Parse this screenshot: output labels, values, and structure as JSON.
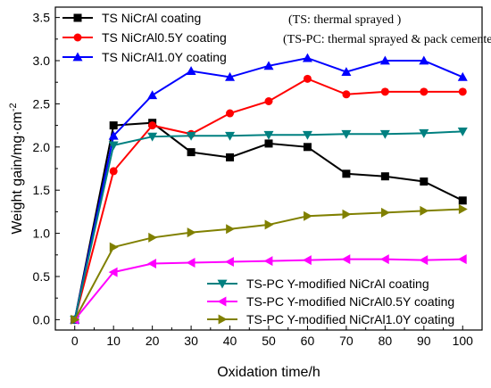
{
  "chart_data": {
    "type": "line",
    "xlabel": "Oxidation time/h",
    "ylabel_main": "Weight gain/mg·cm",
    "ylabel_sup": "-2",
    "xlim": [
      -5,
      105
    ],
    "ylim": [
      -0.12,
      3.62
    ],
    "x_ticks": [
      0,
      10,
      20,
      30,
      40,
      50,
      60,
      70,
      80,
      90,
      100
    ],
    "y_ticks": [
      0.0,
      0.5,
      1.0,
      1.5,
      2.0,
      2.5,
      3.0,
      3.5
    ],
    "x_tick_labels": [
      "0",
      "10",
      "20",
      "30",
      "40",
      "50",
      "60",
      "70",
      "80",
      "90",
      "100"
    ],
    "y_tick_labels": [
      "0.0",
      "0.5",
      "1.0",
      "1.5",
      "2.0",
      "2.5",
      "3.0",
      "3.5"
    ],
    "grid": false,
    "legend_top": "top-left",
    "legend_bottom": "bottom-right",
    "annotations": [
      "(TS: thermal sprayed )",
      "(TS-PC: thermal sprayed & pack cemented)"
    ],
    "x": [
      0,
      10,
      20,
      30,
      40,
      50,
      60,
      70,
      80,
      90,
      100
    ],
    "series": [
      {
        "name": "TS NiCrAl coating",
        "color": "#000000",
        "marker": "square",
        "values": [
          0.0,
          2.25,
          2.28,
          1.94,
          1.88,
          2.04,
          2.0,
          1.69,
          1.66,
          1.6,
          1.38
        ]
      },
      {
        "name": "TS NiCrAl0.5Y coating",
        "color": "#ff0000",
        "marker": "circle",
        "values": [
          0.0,
          1.72,
          2.25,
          2.15,
          2.39,
          2.53,
          2.79,
          2.61,
          2.64,
          2.64,
          2.64
        ]
      },
      {
        "name": "TS NiCrAl1.0Y coating",
        "color": "#0000ff",
        "marker": "triangle-up",
        "values": [
          0.0,
          2.13,
          2.6,
          2.88,
          2.81,
          2.94,
          3.03,
          2.87,
          3.0,
          3.0,
          2.81
        ]
      },
      {
        "name": "TS-PC Y-modified NiCrAl coating",
        "color": "#008080",
        "marker": "triangle-down",
        "values": [
          0.0,
          2.02,
          2.12,
          2.13,
          2.13,
          2.14,
          2.14,
          2.15,
          2.15,
          2.16,
          2.18
        ]
      },
      {
        "name": "TS-PC Y-modified NiCrAl0.5Y coating",
        "color": "#ff00ff",
        "marker": "triangle-left",
        "values": [
          0.0,
          0.55,
          0.65,
          0.66,
          0.67,
          0.68,
          0.69,
          0.7,
          0.7,
          0.69,
          0.7
        ]
      },
      {
        "name": "TS-PC Y-modified NiCrAl1.0Y coating",
        "color": "#808000",
        "marker": "triangle-right",
        "values": [
          0.0,
          0.84,
          0.95,
          1.01,
          1.05,
          1.1,
          1.2,
          1.22,
          1.24,
          1.26,
          1.28
        ]
      }
    ]
  }
}
